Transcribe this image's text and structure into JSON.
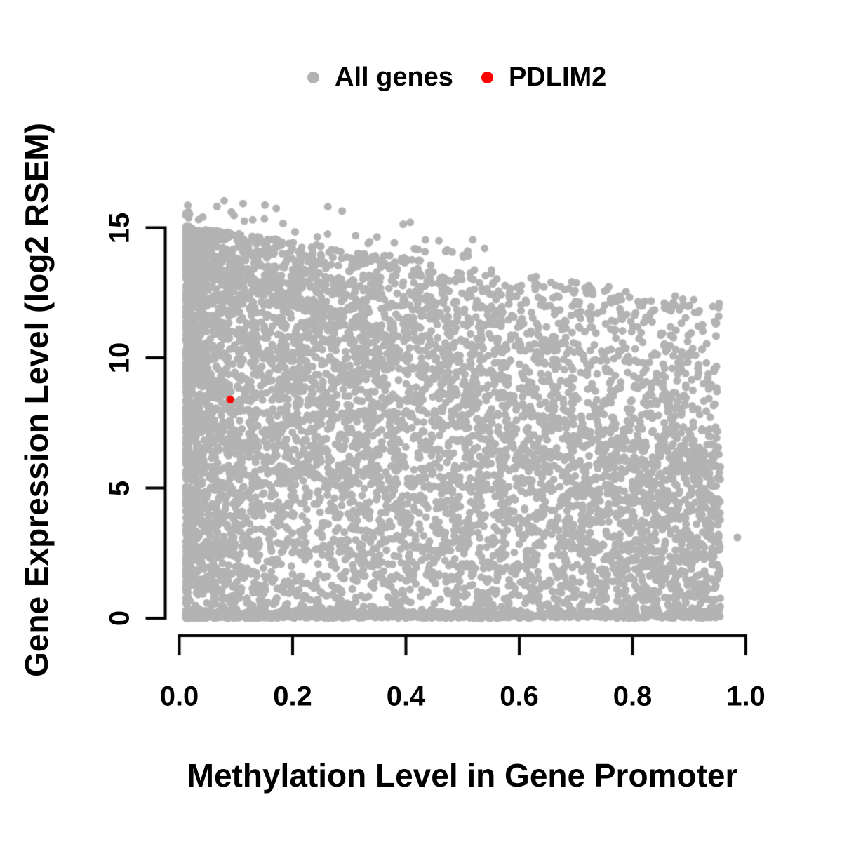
{
  "chart_data": {
    "type": "scatter",
    "title": "",
    "xlabel": "Methylation Level in Gene Promoter",
    "ylabel": "Gene Expression Level (log2 RSEM)",
    "xlim": [
      0,
      1.0
    ],
    "ylim": [
      0,
      15
    ],
    "grid": false,
    "axis_color": "#000000",
    "text_color": "#000000",
    "x_ticks": {
      "values": [
        0,
        0.2,
        0.4,
        0.6,
        0.8,
        1.0
      ],
      "labels": [
        "0.0",
        "0.2",
        "0.4",
        "0.6",
        "0.8",
        "1.0"
      ]
    },
    "y_ticks": {
      "values": [
        0,
        5,
        10,
        15
      ],
      "labels": [
        "0",
        "5",
        "10",
        "15"
      ]
    },
    "legend": {
      "position": "top-center",
      "items": [
        {
          "label": "All genes",
          "color": "#b3b3b3"
        },
        {
          "label": "PDLIM2",
          "color": "#ff0000"
        }
      ]
    },
    "series": [
      {
        "name": "All genes",
        "type": "scatter",
        "color": "#b3b3b3",
        "marker": "filled-circle",
        "marker_radius_px": 5.5,
        "n_points": 8000,
        "description": "Dense cloud of all genes; x from ~0.01 to ~0.95, y from 0 to ~16.8; upper envelope of expression decreases as promoter methylation increases; very dense for methylation < 0.35 and near y = 0 across all x.",
        "distribution": {
          "seed": 42,
          "x_min": 0.012,
          "x_max": 0.955,
          "left_mix": 0.55,
          "left_exp": 2.5,
          "upper_env": {
            "intercept": 15.1,
            "slope": -3.1
          },
          "solid_env": {
            "intercept": 13.5,
            "slope": -7.5
          },
          "p_solid": 0.74,
          "solid_exp": 0.85,
          "mid_exp": 1.15,
          "p_zero": 0.1,
          "zero_sd": 0.15,
          "p_outlier": 0.008,
          "outlier_x_max": 0.55,
          "y_max": 16.8
        },
        "notable_points": [
          [
            0.985,
            3.1
          ]
        ]
      },
      {
        "name": "PDLIM2",
        "type": "scatter",
        "color": "#ff0000",
        "marker": "filled-circle",
        "marker_radius_px": 5.5,
        "points": [
          [
            0.09,
            8.4
          ]
        ]
      }
    ]
  }
}
